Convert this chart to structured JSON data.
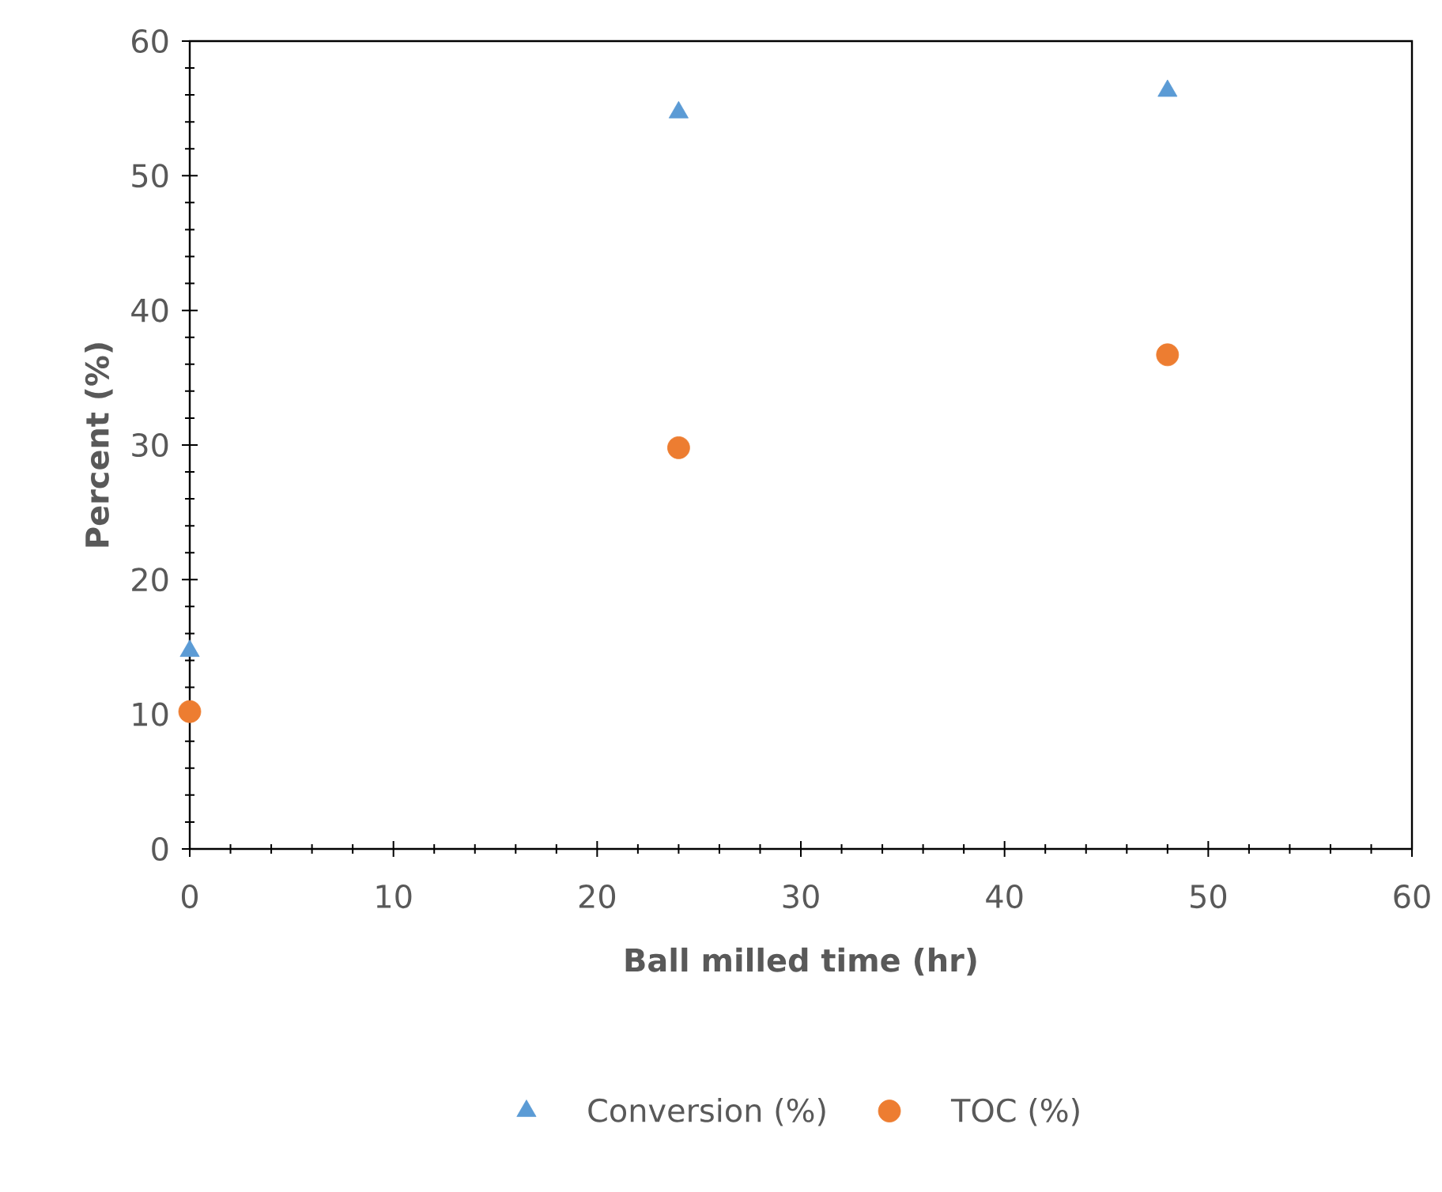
{
  "chart_data": {
    "type": "scatter",
    "xlabel": "Ball milled time (hr)",
    "ylabel": "Percent (%)",
    "xlim": [
      0,
      60
    ],
    "xticks": [
      0,
      10,
      20,
      30,
      40,
      50,
      60
    ],
    "ylim": [
      0,
      60
    ],
    "yticks": [
      0,
      10,
      20,
      30,
      40,
      50,
      60
    ],
    "legend": "bottom",
    "series": [
      {
        "name": "Conversion (%)",
        "color": "#5b9bd5",
        "marker": "triangle",
        "x": [
          0,
          24,
          48
        ],
        "values": [
          14.7,
          54.7,
          56.3
        ]
      },
      {
        "name": "TOC (%)",
        "color": "#ed7d31",
        "marker": "circle",
        "x": [
          0,
          24,
          48
        ],
        "values": [
          10.2,
          29.8,
          36.7
        ]
      }
    ]
  }
}
